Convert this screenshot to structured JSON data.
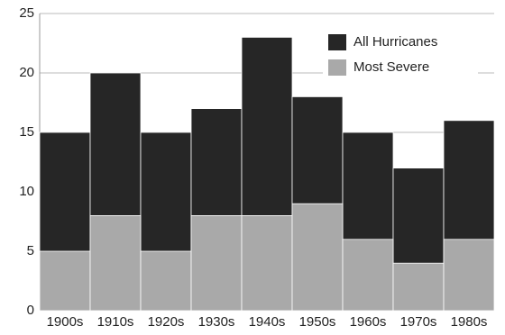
{
  "chart_data": {
    "type": "bar",
    "barmode": "overlay",
    "categories": [
      "1900s",
      "1910s",
      "1920s",
      "1930s",
      "1940s",
      "1950s",
      "1960s",
      "1970s",
      "1980s"
    ],
    "series": [
      {
        "name": "All Hurricanes",
        "color": "#262626",
        "values": [
          15,
          20,
          15,
          17,
          23,
          18,
          15,
          12,
          16
        ]
      },
      {
        "name": "Most Severe",
        "color": "#a9a9a9",
        "values": [
          5,
          8,
          5,
          8,
          8,
          9,
          6,
          4,
          6
        ]
      }
    ],
    "ylim": [
      0,
      25
    ],
    "yticks": [
      0,
      5,
      10,
      15,
      20,
      25
    ],
    "grid": true,
    "legend": "upper right"
  }
}
